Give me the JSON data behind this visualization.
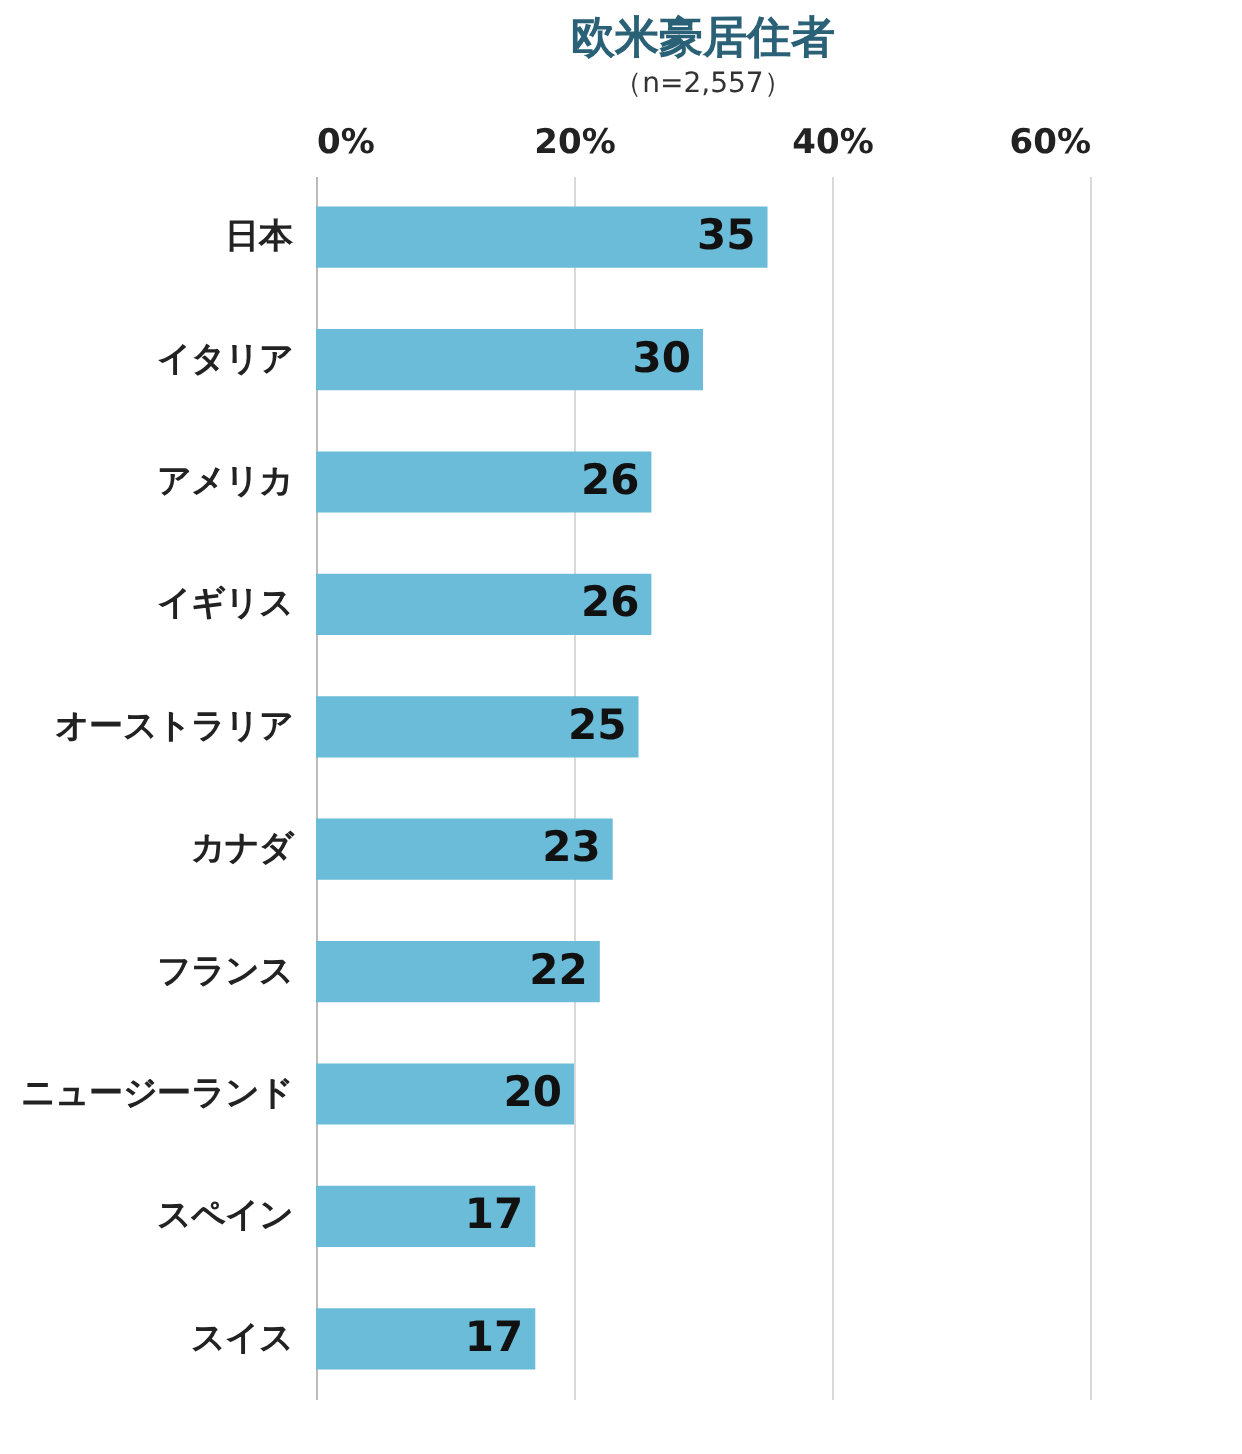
{
  "chart_data": {
    "type": "bar",
    "orientation": "horizontal",
    "title": "欧米豪居住者",
    "subtitle": "（n=2,557）",
    "categories": [
      "日本",
      "イタリア",
      "アメリカ",
      "イギリス",
      "オーストラリア",
      "カナダ",
      "フランス",
      "ニュージーランド",
      "スペイン",
      "スイス"
    ],
    "values": [
      35,
      30,
      26,
      26,
      25,
      23,
      22,
      20,
      17,
      17
    ],
    "color": "#6bbcd9",
    "xlim": [
      0,
      60
    ],
    "xticks": [
      {
        "value": 0,
        "label": "0%"
      },
      {
        "value": 20,
        "label": "20%"
      },
      {
        "value": 40,
        "label": "40%"
      },
      {
        "value": 60,
        "label": "60%"
      }
    ],
    "grid": "x",
    "data_labels": true
  }
}
